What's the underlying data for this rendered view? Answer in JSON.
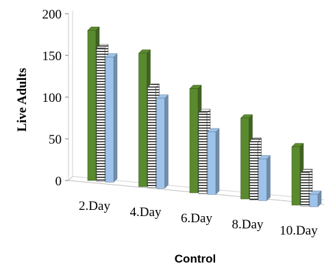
{
  "chart_data": {
    "type": "bar",
    "title": "",
    "xlabel": "Control",
    "ylabel": "Live Adults",
    "categories": [
      "2.Day",
      "4.Day",
      "6.Day",
      "8.Day",
      "10.Day"
    ],
    "series": [
      {
        "values": [
          180,
          160,
          125,
          97,
          70
        ],
        "color": "#5a8a2e",
        "pattern": "solid"
      },
      {
        "values": [
          160,
          120,
          97,
          70,
          40
        ],
        "color": "#ffffff",
        "pattern": "horizontal-stripes"
      },
      {
        "values": [
          150,
          108,
          75,
          50,
          15
        ],
        "color": "#9dc3ea",
        "pattern": "solid"
      }
    ],
    "yticks": [
      0,
      50,
      100,
      150,
      200
    ],
    "ylim": [
      0,
      200
    ],
    "grid": false,
    "legend": "none",
    "style": "3d-clustered-column"
  }
}
